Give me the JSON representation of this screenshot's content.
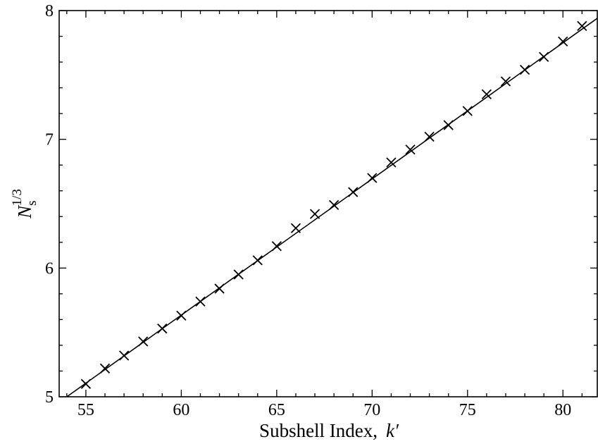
{
  "chart_data": {
    "type": "scatter",
    "title": "",
    "xlabel": "Subshell Index,",
    "xlabel_var": "k′",
    "ylabel_base": "N",
    "ylabel_sub": "s",
    "ylabel_sup": "1/3",
    "xlim": [
      53.6,
      81.8
    ],
    "ylim": [
      5,
      8
    ],
    "x_ticks": [
      55,
      60,
      65,
      70,
      75,
      80
    ],
    "y_ticks": [
      5,
      6,
      7,
      8
    ],
    "grid": false,
    "marker": "x",
    "series": [
      {
        "x": [
          55,
          56,
          57,
          58,
          59,
          60,
          61,
          62,
          63,
          64,
          65,
          66,
          67,
          68,
          69,
          70,
          71,
          72,
          73,
          74,
          75,
          76,
          77,
          78,
          79,
          80,
          81
        ],
        "y": [
          5.1,
          5.22,
          5.32,
          5.43,
          5.53,
          5.63,
          5.74,
          5.84,
          5.95,
          6.06,
          6.17,
          6.31,
          6.42,
          6.49,
          6.59,
          6.7,
          6.82,
          6.92,
          7.02,
          7.11,
          7.22,
          7.35,
          7.45,
          7.54,
          7.64,
          7.76,
          7.88
        ]
      }
    ],
    "fit_line": {
      "x": [
        54.0,
        81.8
      ],
      "y": [
        5.0,
        7.94
      ]
    }
  }
}
